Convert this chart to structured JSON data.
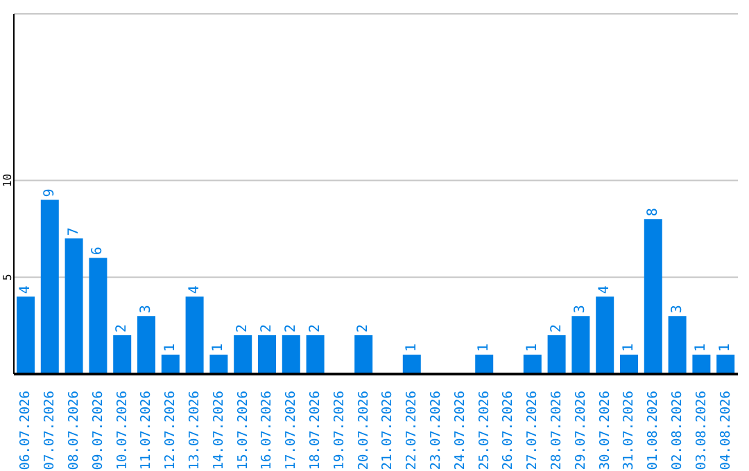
{
  "chart_data": {
    "type": "bar",
    "categories": [
      "06.07.2026",
      "07.07.2026",
      "08.07.2026",
      "09.07.2026",
      "10.07.2026",
      "11.07.2026",
      "12.07.2026",
      "13.07.2026",
      "14.07.2026",
      "15.07.2026",
      "16.07.2026",
      "17.07.2026",
      "18.07.2026",
      "19.07.2026",
      "20.07.2026",
      "21.07.2026",
      "22.07.2026",
      "23.07.2026",
      "24.07.2026",
      "25.07.2026",
      "26.07.2026",
      "27.07.2026",
      "28.07.2026",
      "29.07.2026",
      "30.07.2026",
      "31.07.2026",
      "01.08.2026",
      "02.08.2026",
      "03.08.2026",
      "04.08.2026"
    ],
    "values": [
      4,
      9,
      7,
      6,
      2,
      3,
      1,
      4,
      1,
      2,
      2,
      2,
      2,
      0,
      2,
      0,
      1,
      0,
      0,
      1,
      0,
      1,
      2,
      3,
      4,
      1,
      8,
      3,
      1,
      1
    ],
    "value_labels": [
      "4",
      "9",
      "7",
      "6",
      "2",
      "3",
      "1",
      "4",
      "1",
      "2",
      "2",
      "2",
      "2",
      null,
      "2",
      null,
      "1",
      null,
      null,
      "1",
      null,
      "1",
      "2",
      "3",
      "4",
      "1",
      "8",
      "3",
      "1",
      "1"
    ],
    "color": "#0080e6",
    "ylim": [
      0,
      18.6
    ],
    "yticks": [
      5,
      10
    ],
    "grid": "y"
  }
}
